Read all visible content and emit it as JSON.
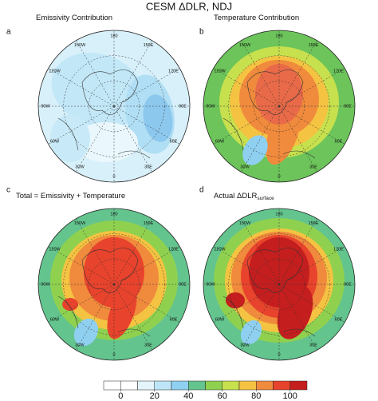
{
  "title": "CESM ΔDLR, NDJ",
  "panels": [
    {
      "letter": "a",
      "title": "Emissivity Contribution"
    },
    {
      "letter": "b",
      "title": "Temperature Contribution"
    },
    {
      "letter": "c",
      "title": "Total = Emissivity + Temperature"
    },
    {
      "letter": "d",
      "title": "Actual ΔDLR",
      "subscript": "surface"
    }
  ],
  "lon_labels": [
    "180",
    "150E",
    "120E",
    "90E",
    "60E",
    "30E",
    "0",
    "30W",
    "60W",
    "90W",
    "120W",
    "150W"
  ],
  "colorbar": {
    "ticks": [
      0,
      20,
      40,
      60,
      80,
      100
    ],
    "colors": [
      "#ffffff",
      "#ffffff",
      "#e3f4fb",
      "#bde5f7",
      "#8fd0f0",
      "#63c48e",
      "#8fd14f",
      "#c7e04d",
      "#f4c342",
      "#f08a3c",
      "#e8432c",
      "#c41e1e"
    ]
  }
}
